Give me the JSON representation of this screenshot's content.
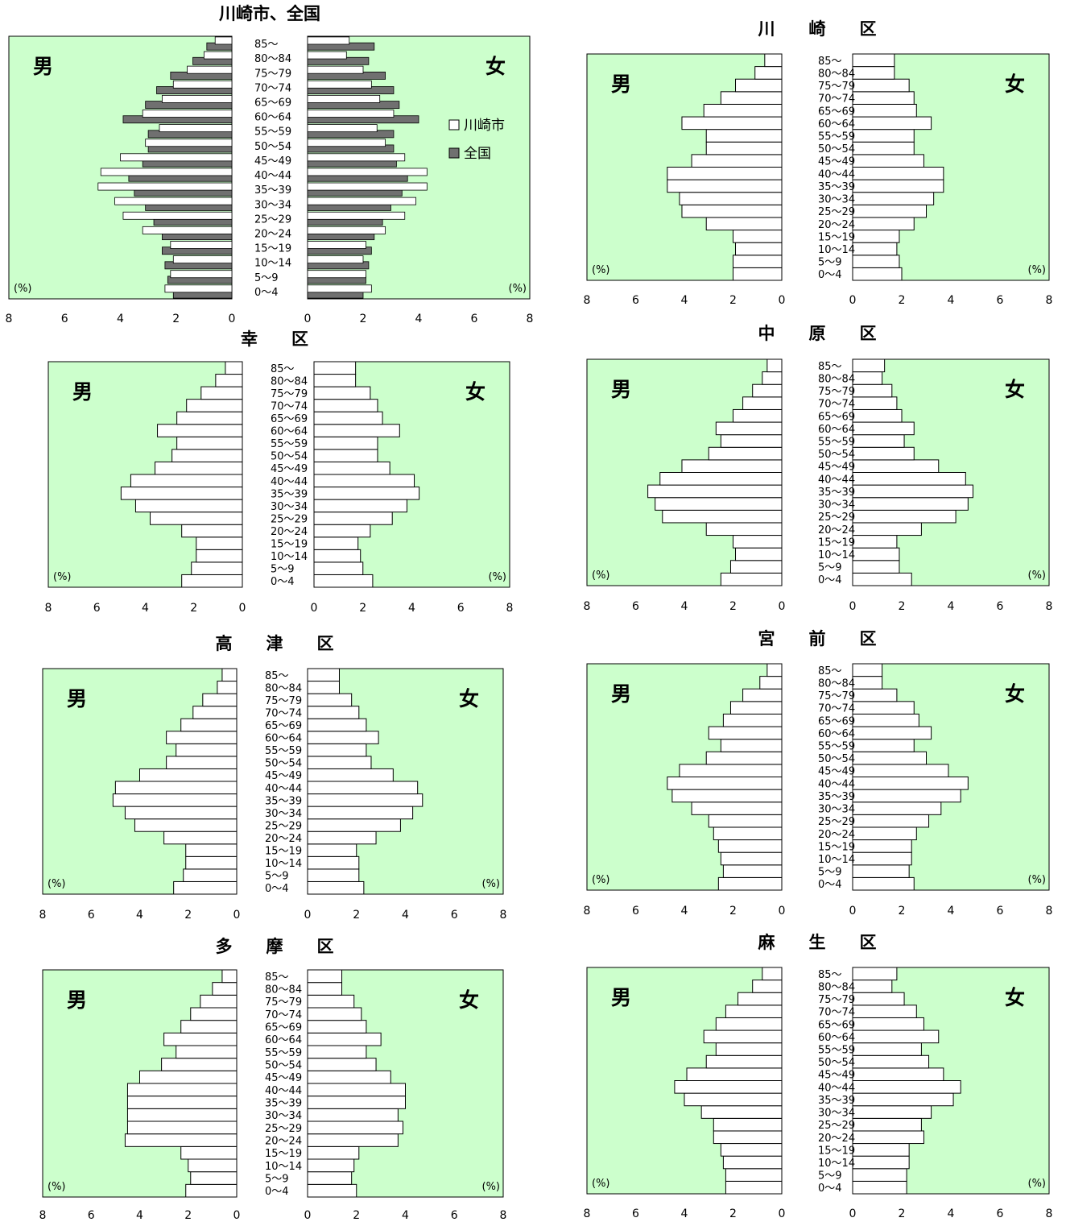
{
  "labels": {
    "male": "男",
    "female": "女",
    "percent": "(%)"
  },
  "legend": {
    "kawasaki": "川崎市",
    "national": "全国"
  },
  "colors": {
    "plot_bg": "#ccffcc",
    "bar_fill": "#ffffff",
    "national_fill": "#707070",
    "stroke": "#000000"
  },
  "axis": {
    "ticks": [
      0,
      2,
      4,
      6,
      8
    ]
  },
  "chart_data": [
    {
      "type": "bar",
      "title": "川崎市、全国",
      "categories": [
        "0～4",
        "5～9",
        "10～14",
        "15～19",
        "20～24",
        "25～29",
        "30～34",
        "35～39",
        "40～44",
        "45～49",
        "50～54",
        "55～59",
        "60～64",
        "65～69",
        "70～74",
        "75～79",
        "80～84",
        "85～"
      ],
      "xlim": [
        0,
        8
      ],
      "series": [
        {
          "name": "川崎市",
          "side": "male",
          "values": [
            2.4,
            2.2,
            2.1,
            2.2,
            3.2,
            3.9,
            4.2,
            4.8,
            4.7,
            4.0,
            3.1,
            2.6,
            3.2,
            2.5,
            2.1,
            1.6,
            1.0,
            0.6
          ]
        },
        {
          "name": "川崎市",
          "side": "female",
          "values": [
            2.3,
            2.1,
            2.0,
            2.1,
            2.8,
            3.5,
            3.9,
            4.3,
            4.3,
            3.5,
            2.8,
            2.5,
            3.1,
            2.6,
            2.3,
            2.0,
            1.4,
            1.5
          ]
        },
        {
          "name": "全国",
          "side": "male",
          "values": [
            2.1,
            2.3,
            2.4,
            2.5,
            2.5,
            2.8,
            3.1,
            3.5,
            3.7,
            3.2,
            3.0,
            3.0,
            3.9,
            3.1,
            2.7,
            2.2,
            1.4,
            0.9
          ]
        },
        {
          "name": "全国",
          "side": "female",
          "values": [
            2.0,
            2.1,
            2.2,
            2.3,
            2.4,
            2.7,
            3.0,
            3.4,
            3.6,
            3.2,
            3.1,
            3.1,
            4.0,
            3.3,
            3.1,
            2.8,
            2.2,
            2.4
          ]
        }
      ]
    },
    {
      "type": "bar",
      "title": "川　　崎　　区",
      "categories": [
        "0～4",
        "5～9",
        "10～14",
        "15～19",
        "20～24",
        "25～29",
        "30～34",
        "35～39",
        "40～44",
        "45～49",
        "50～54",
        "55～59",
        "60～64",
        "65～69",
        "70～74",
        "75～79",
        "80～84",
        "85～"
      ],
      "xlim": [
        0,
        8
      ],
      "male": [
        2.0,
        2.0,
        1.9,
        2.0,
        3.1,
        4.1,
        4.2,
        4.7,
        4.7,
        3.7,
        3.1,
        3.1,
        4.1,
        3.2,
        2.5,
        1.9,
        1.1,
        0.7
      ],
      "female": [
        2.0,
        1.9,
        1.8,
        1.9,
        2.5,
        3.0,
        3.3,
        3.7,
        3.7,
        2.9,
        2.5,
        2.5,
        3.2,
        2.6,
        2.5,
        2.3,
        1.7,
        1.7
      ]
    },
    {
      "type": "bar",
      "title": "幸　　区",
      "categories": [
        "0～4",
        "5～9",
        "10～14",
        "15～19",
        "20～24",
        "25～29",
        "30～34",
        "35～39",
        "40～44",
        "45～49",
        "50～54",
        "55～59",
        "60～64",
        "65～69",
        "70～74",
        "75～79",
        "80～84",
        "85～"
      ],
      "xlim": [
        0,
        8
      ],
      "male": [
        2.5,
        2.1,
        1.9,
        1.9,
        2.5,
        3.8,
        4.4,
        5.0,
        4.6,
        3.6,
        2.9,
        2.7,
        3.5,
        2.7,
        2.3,
        1.7,
        1.1,
        0.7
      ],
      "female": [
        2.4,
        2.0,
        1.9,
        1.8,
        2.3,
        3.2,
        3.8,
        4.3,
        4.1,
        3.1,
        2.6,
        2.6,
        3.5,
        2.8,
        2.6,
        2.3,
        1.7,
        1.7
      ]
    },
    {
      "type": "bar",
      "title": "中　　原　　区",
      "categories": [
        "0～4",
        "5～9",
        "10～14",
        "15～19",
        "20～24",
        "25～29",
        "30～34",
        "35～39",
        "40～44",
        "45～49",
        "50～54",
        "55～59",
        "60～64",
        "65～69",
        "70～74",
        "75～79",
        "80～84",
        "85～"
      ],
      "xlim": [
        0,
        8
      ],
      "male": [
        2.5,
        2.1,
        1.9,
        2.0,
        3.1,
        4.9,
        5.2,
        5.5,
        5.0,
        4.1,
        3.0,
        2.5,
        2.7,
        2.0,
        1.6,
        1.2,
        0.8,
        0.6
      ],
      "female": [
        2.4,
        1.9,
        1.9,
        1.8,
        2.8,
        4.2,
        4.7,
        4.9,
        4.6,
        3.5,
        2.5,
        2.1,
        2.5,
        2.0,
        1.8,
        1.6,
        1.2,
        1.3
      ]
    },
    {
      "type": "bar",
      "title": "高　　津　　区",
      "categories": [
        "0～4",
        "5～9",
        "10～14",
        "15～19",
        "20～24",
        "25～29",
        "30～34",
        "35～39",
        "40～44",
        "45～49",
        "50～54",
        "55～59",
        "60～64",
        "65～69",
        "70～74",
        "75～79",
        "80～84",
        "85～"
      ],
      "xlim": [
        0,
        8
      ],
      "male": [
        2.6,
        2.2,
        2.1,
        2.1,
        3.0,
        4.2,
        4.6,
        5.1,
        5.0,
        4.0,
        2.9,
        2.5,
        2.9,
        2.3,
        1.8,
        1.4,
        0.8,
        0.6
      ],
      "female": [
        2.3,
        2.1,
        2.1,
        2.0,
        2.8,
        3.8,
        4.3,
        4.7,
        4.5,
        3.5,
        2.6,
        2.4,
        2.9,
        2.4,
        2.1,
        1.8,
        1.3,
        1.3
      ]
    },
    {
      "type": "bar",
      "title": "宮　　前　　区",
      "categories": [
        "0～4",
        "5～9",
        "10～14",
        "15～19",
        "20～24",
        "25～29",
        "30～34",
        "35～39",
        "40～44",
        "45～49",
        "50～54",
        "55～59",
        "60～64",
        "65～69",
        "70～74",
        "75～79",
        "80～84",
        "85～"
      ],
      "xlim": [
        0,
        8
      ],
      "male": [
        2.6,
        2.4,
        2.5,
        2.6,
        2.8,
        3.0,
        3.7,
        4.5,
        4.7,
        4.2,
        3.1,
        2.5,
        3.0,
        2.4,
        2.1,
        1.6,
        0.9,
        0.6
      ],
      "female": [
        2.5,
        2.3,
        2.4,
        2.4,
        2.6,
        3.1,
        3.6,
        4.4,
        4.7,
        3.9,
        3.0,
        2.5,
        3.2,
        2.7,
        2.5,
        1.8,
        1.2,
        1.2
      ]
    },
    {
      "type": "bar",
      "title": "多　　摩　　区",
      "categories": [
        "0～4",
        "5～9",
        "10～14",
        "15～19",
        "20～24",
        "25～29",
        "30～34",
        "35～39",
        "40～44",
        "45～49",
        "50～54",
        "55～59",
        "60～64",
        "65～69",
        "70～74",
        "75～79",
        "80～84",
        "85～"
      ],
      "xlim": [
        0,
        8
      ],
      "male": [
        2.1,
        1.9,
        2.0,
        2.3,
        4.6,
        4.5,
        4.5,
        4.5,
        4.5,
        4.0,
        3.1,
        2.5,
        3.0,
        2.3,
        1.9,
        1.5,
        1.0,
        0.6
      ],
      "female": [
        2.0,
        1.8,
        1.9,
        2.1,
        3.7,
        3.9,
        3.7,
        4.0,
        4.0,
        3.4,
        2.8,
        2.4,
        3.0,
        2.4,
        2.2,
        1.9,
        1.4,
        1.4
      ]
    },
    {
      "type": "bar",
      "title": "麻　　生　　区",
      "categories": [
        "0～4",
        "5～9",
        "10～14",
        "15～19",
        "20～24",
        "25～29",
        "30～34",
        "35～39",
        "40～44",
        "45～49",
        "50～54",
        "55～59",
        "60～64",
        "65～69",
        "70～74",
        "75～79",
        "80～84",
        "85～"
      ],
      "xlim": [
        0,
        8
      ],
      "male": [
        2.3,
        2.3,
        2.4,
        2.5,
        2.8,
        2.8,
        3.3,
        4.0,
        4.4,
        3.9,
        3.1,
        2.7,
        3.2,
        2.7,
        2.3,
        1.8,
        1.2,
        0.8
      ],
      "female": [
        2.2,
        2.2,
        2.3,
        2.3,
        2.9,
        2.8,
        3.2,
        4.1,
        4.4,
        3.7,
        3.1,
        2.8,
        3.5,
        2.9,
        2.6,
        2.1,
        1.6,
        1.8
      ]
    }
  ]
}
